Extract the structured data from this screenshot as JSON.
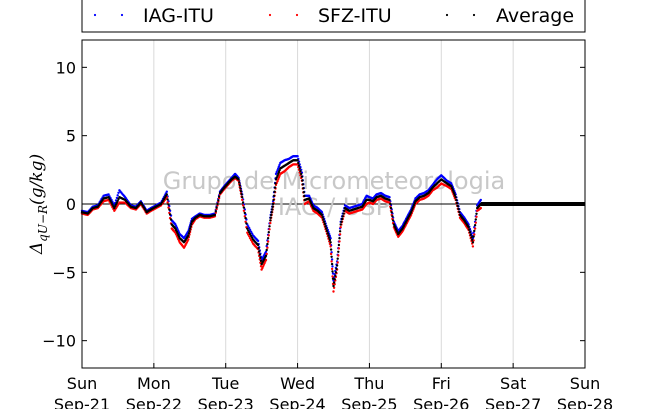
{
  "chart_data": {
    "type": "scatter",
    "ylabel": "Δq_{U−R}(g/kg)",
    "ylabel_main": "Δ",
    "ylabel_sub": "qU−R",
    "ylabel_tail": "(g/kg)",
    "ylim": [
      -12,
      12
    ],
    "yticks": [
      10,
      5,
      0,
      -5,
      -10
    ],
    "ytick_labels": [
      "10",
      "5",
      "0",
      "−5",
      "−10"
    ],
    "xlim": [
      0,
      7
    ],
    "x_units": "days since Sun Sep-21",
    "xticks": [
      {
        "day": "Sun",
        "date": "Sep-21"
      },
      {
        "day": "Mon",
        "date": "Sep-22"
      },
      {
        "day": "Tue",
        "date": "Sep-23"
      },
      {
        "day": "Wed",
        "date": "Sep-24"
      },
      {
        "day": "Thu",
        "date": "Sep-25"
      },
      {
        "day": "Fri",
        "date": "Sep-26"
      },
      {
        "day": "Sat",
        "date": "Sep-27"
      },
      {
        "day": "Sun",
        "date": "Sep-28"
      }
    ],
    "grid": "vertical",
    "zero_line": true,
    "legend_placement": "top",
    "legend": [
      {
        "name": "IAG-ITU",
        "color": "#0000ff"
      },
      {
        "name": "SFZ-ITU",
        "color": "#ff0000"
      },
      {
        "name": "Average",
        "color": "#000000"
      }
    ],
    "watermark": [
      "Grupo de Micrometeorologia",
      "IAG / USP"
    ],
    "series": [
      {
        "name": "Average",
        "color": "#000000",
        "x": [
          0.0,
          0.08,
          0.15,
          0.22,
          0.3,
          0.37,
          0.45,
          0.52,
          0.6,
          0.68,
          0.75,
          0.82,
          0.9,
          0.96,
          1.03,
          1.1,
          1.18,
          1.25,
          1.3,
          1.36,
          1.42,
          1.48,
          1.53,
          1.58,
          1.64,
          1.7,
          1.78,
          1.85,
          1.92,
          1.98,
          2.03,
          2.08,
          2.13,
          2.18,
          2.23,
          2.3,
          2.38,
          2.45,
          2.5,
          2.56,
          2.62,
          2.66,
          2.7,
          2.76,
          2.82,
          2.88,
          2.94,
          3.0,
          3.06,
          3.1,
          3.16,
          3.22,
          3.28,
          3.34,
          3.4,
          3.46,
          3.5,
          3.55,
          3.6,
          3.66,
          3.72,
          3.78,
          3.84,
          3.9,
          3.96,
          4.0,
          4.05,
          4.1,
          4.16,
          4.22,
          4.28,
          4.34,
          4.4,
          4.46,
          4.52,
          4.58,
          4.64,
          4.7,
          4.76,
          4.82,
          4.88,
          4.94,
          5.0,
          5.08,
          5.14,
          5.2,
          5.26,
          5.32,
          5.38,
          5.44,
          5.5,
          5.55
        ],
        "y": [
          -0.6,
          -0.7,
          -0.3,
          -0.2,
          0.4,
          0.5,
          -0.3,
          0.5,
          0.3,
          -0.2,
          -0.3,
          0.1,
          -0.6,
          -0.4,
          -0.2,
          0.0,
          0.7,
          -1.5,
          -1.8,
          -2.5,
          -2.8,
          -2.3,
          -1.3,
          -1.0,
          -0.8,
          -0.9,
          -0.9,
          -0.8,
          0.8,
          1.2,
          1.5,
          1.8,
          2.0,
          1.8,
          0.5,
          -1.8,
          -2.6,
          -3.0,
          -4.4,
          -3.8,
          -1.2,
          0.0,
          1.8,
          2.6,
          2.8,
          3.0,
          3.2,
          3.2,
          2.0,
          0.3,
          0.4,
          -0.3,
          -0.5,
          -0.8,
          -1.8,
          -2.8,
          -6.0,
          -4.5,
          -1.5,
          -0.3,
          -0.5,
          -0.4,
          -0.3,
          -0.2,
          0.3,
          0.3,
          0.2,
          0.5,
          0.6,
          0.4,
          0.3,
          -1.5,
          -2.2,
          -1.8,
          -1.2,
          -0.6,
          0.2,
          0.5,
          0.6,
          0.8,
          1.2,
          1.5,
          1.8,
          1.5,
          1.3,
          0.5,
          -0.8,
          -1.2,
          -1.7,
          -2.8,
          -0.3,
          0.0
        ]
      },
      {
        "name": "IAG-ITU",
        "color": "#0000ff",
        "x": [
          0.0,
          0.08,
          0.15,
          0.22,
          0.3,
          0.37,
          0.45,
          0.52,
          0.6,
          0.68,
          0.75,
          0.82,
          0.9,
          0.96,
          1.03,
          1.1,
          1.18,
          1.25,
          1.3,
          1.36,
          1.42,
          1.48,
          1.53,
          1.58,
          1.64,
          1.7,
          1.78,
          1.85,
          1.92,
          1.98,
          2.03,
          2.08,
          2.13,
          2.18,
          2.23,
          2.3,
          2.38,
          2.45,
          2.5,
          2.56,
          2.62,
          2.66,
          2.7,
          2.76,
          2.82,
          2.88,
          2.94,
          3.0,
          3.06,
          3.1,
          3.16,
          3.22,
          3.28,
          3.34,
          3.4,
          3.46,
          3.5,
          3.55,
          3.6,
          3.66,
          3.72,
          3.78,
          3.84,
          3.9,
          3.96,
          4.0,
          4.05,
          4.1,
          4.16,
          4.22,
          4.28,
          4.34,
          4.4,
          4.46,
          4.52,
          4.58,
          4.64,
          4.7,
          4.76,
          4.82,
          4.88,
          4.94,
          5.0,
          5.08,
          5.14,
          5.2,
          5.26,
          5.32,
          5.38,
          5.44,
          5.5,
          5.55
        ],
        "y": [
          -0.5,
          -0.6,
          -0.2,
          -0.1,
          0.6,
          0.7,
          -0.1,
          1.0,
          0.5,
          -0.1,
          -0.2,
          0.2,
          -0.5,
          -0.3,
          -0.1,
          0.1,
          0.9,
          -1.2,
          -1.5,
          -2.2,
          -2.5,
          -2.0,
          -1.1,
          -0.9,
          -0.7,
          -0.8,
          -0.8,
          -0.7,
          0.9,
          1.3,
          1.6,
          1.9,
          2.2,
          1.9,
          0.7,
          -1.5,
          -2.3,
          -2.7,
          -4.1,
          -3.5,
          -1.0,
          0.2,
          2.2,
          3.0,
          3.2,
          3.3,
          3.5,
          3.5,
          2.3,
          0.6,
          0.6,
          -0.1,
          -0.3,
          -0.6,
          -1.6,
          -2.5,
          -5.6,
          -4.2,
          -1.3,
          -0.1,
          -0.3,
          -0.2,
          -0.1,
          0.0,
          0.6,
          0.5,
          0.4,
          0.7,
          0.8,
          0.6,
          0.5,
          -1.3,
          -2.0,
          -1.6,
          -1.0,
          -0.4,
          0.4,
          0.7,
          0.8,
          1.0,
          1.4,
          1.8,
          2.1,
          1.7,
          1.5,
          0.7,
          -0.6,
          -1.0,
          -1.5,
          -2.5,
          -0.1,
          0.3
        ]
      },
      {
        "name": "SFZ-ITU",
        "color": "#ff0000",
        "x": [
          0.0,
          0.08,
          0.15,
          0.22,
          0.3,
          0.37,
          0.45,
          0.52,
          0.6,
          0.68,
          0.75,
          0.82,
          0.9,
          0.96,
          1.03,
          1.1,
          1.18,
          1.25,
          1.3,
          1.36,
          1.42,
          1.48,
          1.53,
          1.58,
          1.64,
          1.7,
          1.78,
          1.85,
          1.92,
          1.98,
          2.03,
          2.08,
          2.13,
          2.18,
          2.23,
          2.3,
          2.38,
          2.45,
          2.5,
          2.56,
          2.62,
          2.66,
          2.7,
          2.76,
          2.82,
          2.88,
          2.94,
          3.0,
          3.06,
          3.1,
          3.16,
          3.22,
          3.28,
          3.34,
          3.4,
          3.46,
          3.5,
          3.55,
          3.6,
          3.66,
          3.72,
          3.78,
          3.84,
          3.9,
          3.96,
          4.0,
          4.05,
          4.1,
          4.16,
          4.22,
          4.28,
          4.34,
          4.4,
          4.46,
          4.52,
          4.58,
          4.64,
          4.7,
          4.76,
          4.82,
          4.88,
          4.94,
          5.0,
          5.08,
          5.14,
          5.2,
          5.26,
          5.32,
          5.38,
          5.44,
          5.5,
          5.55
        ],
        "y": [
          -0.7,
          -0.8,
          -0.4,
          -0.3,
          0.2,
          0.3,
          -0.5,
          0.1,
          0.1,
          -0.3,
          -0.4,
          0.0,
          -0.7,
          -0.5,
          -0.3,
          -0.1,
          0.5,
          -1.8,
          -2.1,
          -2.8,
          -3.2,
          -2.6,
          -1.5,
          -1.1,
          -0.9,
          -1.0,
          -1.0,
          -0.9,
          0.7,
          1.1,
          1.4,
          1.7,
          1.9,
          1.7,
          0.3,
          -2.1,
          -2.9,
          -3.3,
          -4.8,
          -4.1,
          -1.4,
          -0.2,
          1.4,
          2.2,
          2.4,
          2.7,
          2.9,
          2.9,
          1.7,
          0.0,
          0.2,
          -0.5,
          -0.7,
          -1.0,
          -2.0,
          -3.1,
          -6.4,
          -4.8,
          -1.7,
          -0.5,
          -0.7,
          -0.6,
          -0.5,
          -0.4,
          0.0,
          0.1,
          0.0,
          0.3,
          0.4,
          0.2,
          0.1,
          -1.7,
          -2.4,
          -2.0,
          -1.4,
          -0.8,
          0.0,
          0.3,
          0.4,
          0.6,
          1.0,
          1.2,
          1.5,
          1.3,
          1.1,
          0.3,
          -1.0,
          -1.4,
          -1.9,
          -3.1,
          -0.5,
          -0.3
        ]
      }
    ],
    "flat_segment": {
      "x_start": 5.55,
      "x_end": 7.0,
      "y": 0.0
    }
  }
}
